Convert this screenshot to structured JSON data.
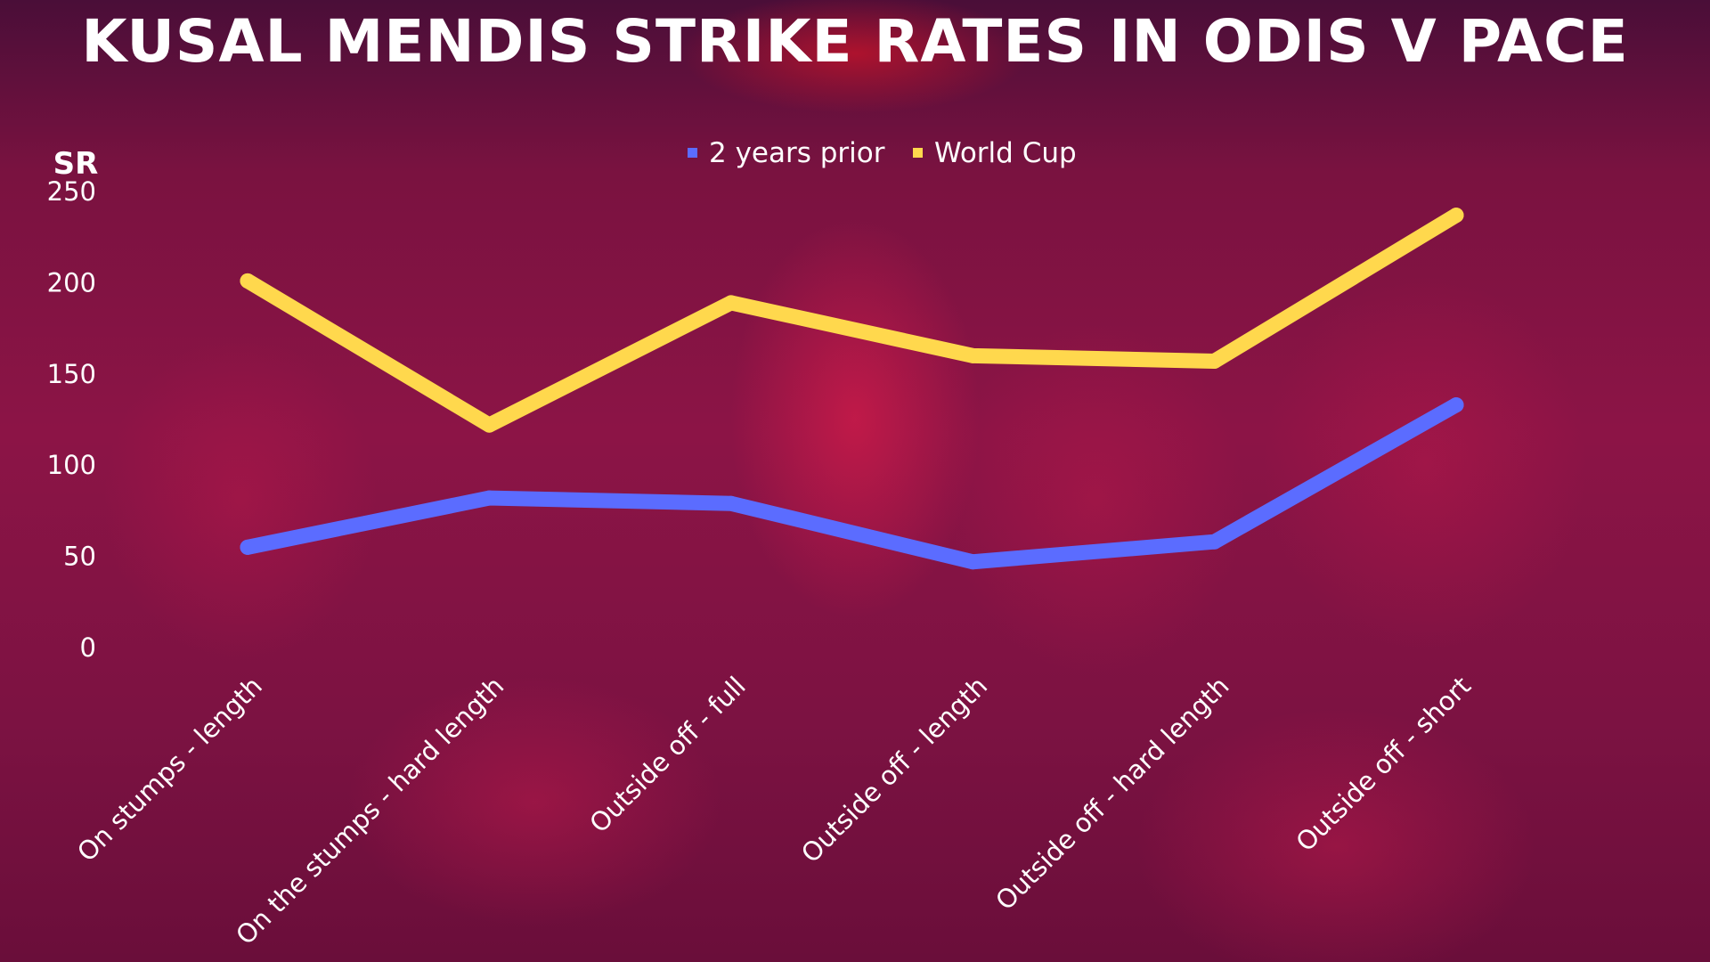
{
  "chart_data": {
    "type": "line",
    "title": "KUSAL MENDIS STRIKE RATES IN ODIS V PACE",
    "ylabel": "SR",
    "xlabel": "",
    "ylim": [
      0,
      250
    ],
    "yticks": [
      0,
      50,
      100,
      150,
      200,
      250
    ],
    "grid": false,
    "legend_position": "top-center",
    "categories": [
      "On stumps - length",
      "On the stumps - hard length",
      "Outside off - full",
      "Outside off - length",
      "Outside off - hard length",
      "Outside off - short"
    ],
    "series": [
      {
        "name": "2 years prior",
        "color": "#5b6cff",
        "values": [
          55,
          82,
          79,
          47,
          58,
          133
        ]
      },
      {
        "name": "World Cup",
        "color": "#ffd84d",
        "values": [
          201,
          122,
          189,
          160,
          157,
          237
        ]
      }
    ]
  }
}
